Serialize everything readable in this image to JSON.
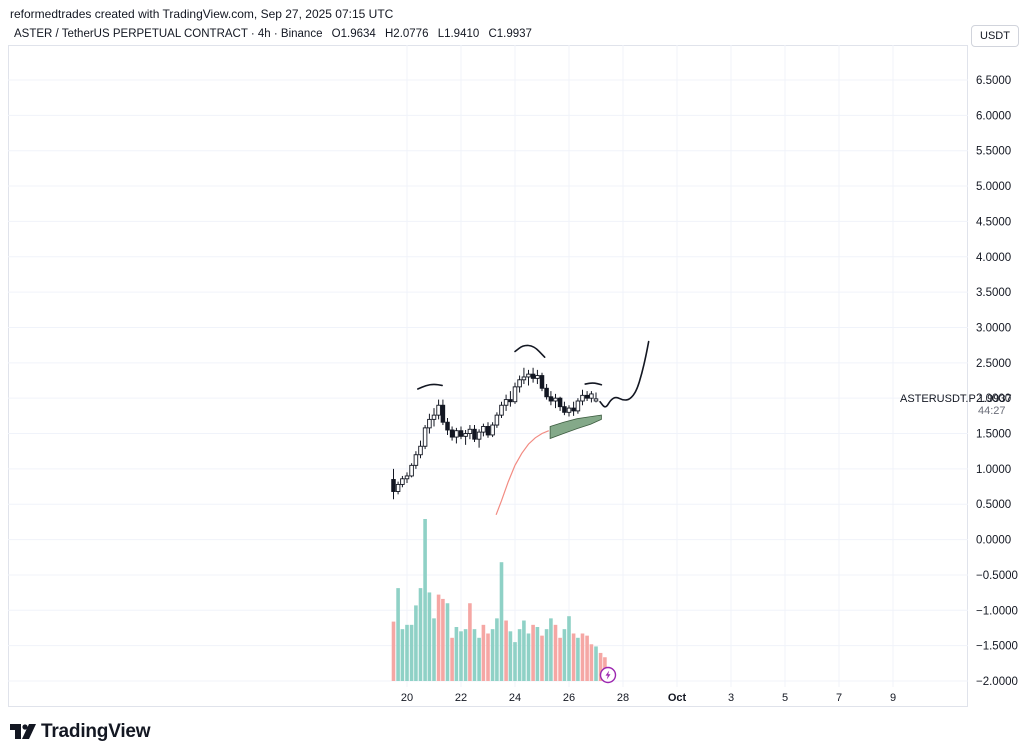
{
  "header": {
    "credit": "reformedtrades created with TradingView.com, Sep 27, 2025 07:15 UTC"
  },
  "legend": {
    "symbol": "ASTER / TetherUS PERPETUAL CONTRACT · 4h · Binance",
    "open": "O1.9634",
    "high": "H2.0776",
    "low": "L1.9410",
    "close": "C1.9937"
  },
  "currency": "USDT",
  "last_price": {
    "symbol": "ASTERUSDT.P",
    "value": "1.9937",
    "countdown": "44:27"
  },
  "brand": {
    "name": "TradingView",
    "icon": "tradingview-logo-icon"
  },
  "colors": {
    "up_volume": "#8fd1c6",
    "down_volume": "#f5a7a4",
    "candle": "#131722",
    "ma_line": "#f28b82",
    "shaded_zone": "#6f9a74",
    "grid": "#f0f3fa"
  },
  "chart_data": {
    "type": "candlestick",
    "title": "",
    "price_axis": {
      "ticks": [
        "6.5000",
        "6.0000",
        "5.5000",
        "5.0000",
        "4.5000",
        "4.0000",
        "3.5000",
        "3.0000",
        "2.5000",
        "2.0000",
        "1.5000",
        "1.0000",
        "0.5000",
        "0.0000",
        "−0.5000",
        "−1.0000",
        "−1.5000",
        "−2.0000"
      ],
      "ylim": [
        -2.0,
        6.5
      ]
    },
    "time_axis": {
      "ticks": [
        "20",
        "22",
        "24",
        "26",
        "28",
        "Oct",
        "3",
        "5",
        "7",
        "9"
      ],
      "tick_days": [
        20,
        22,
        24,
        26,
        28,
        30,
        32,
        34,
        36,
        38
      ],
      "xlim": [
        19.0,
        40.0
      ]
    },
    "grid": true,
    "candles": [
      {
        "x": 19.5,
        "o": 0.85,
        "h": 1.0,
        "l": 0.57,
        "c": 0.68
      },
      {
        "x": 19.67,
        "o": 0.68,
        "h": 0.82,
        "l": 0.64,
        "c": 0.78
      },
      {
        "x": 19.83,
        "o": 0.78,
        "h": 0.9,
        "l": 0.74,
        "c": 0.86
      },
      {
        "x": 20.0,
        "o": 0.86,
        "h": 0.95,
        "l": 0.8,
        "c": 0.9
      },
      {
        "x": 20.17,
        "o": 0.9,
        "h": 1.08,
        "l": 0.88,
        "c": 1.05
      },
      {
        "x": 20.33,
        "o": 1.05,
        "h": 1.25,
        "l": 1.0,
        "c": 1.2
      },
      {
        "x": 20.5,
        "o": 1.2,
        "h": 1.4,
        "l": 1.15,
        "c": 1.32
      },
      {
        "x": 20.67,
        "o": 1.32,
        "h": 1.62,
        "l": 1.28,
        "c": 1.58
      },
      {
        "x": 20.83,
        "o": 1.58,
        "h": 1.78,
        "l": 1.5,
        "c": 1.7
      },
      {
        "x": 21.0,
        "o": 1.7,
        "h": 1.86,
        "l": 1.6,
        "c": 1.76
      },
      {
        "x": 21.17,
        "o": 1.76,
        "h": 1.98,
        "l": 1.7,
        "c": 1.9
      },
      {
        "x": 21.33,
        "o": 1.9,
        "h": 1.98,
        "l": 1.62,
        "c": 1.66
      },
      {
        "x": 21.5,
        "o": 1.66,
        "h": 1.72,
        "l": 1.48,
        "c": 1.55
      },
      {
        "x": 21.67,
        "o": 1.55,
        "h": 1.6,
        "l": 1.4,
        "c": 1.45
      },
      {
        "x": 21.83,
        "o": 1.45,
        "h": 1.58,
        "l": 1.36,
        "c": 1.54
      },
      {
        "x": 22.0,
        "o": 1.54,
        "h": 1.6,
        "l": 1.42,
        "c": 1.46
      },
      {
        "x": 22.17,
        "o": 1.46,
        "h": 1.55,
        "l": 1.34,
        "c": 1.5
      },
      {
        "x": 22.33,
        "o": 1.5,
        "h": 1.62,
        "l": 1.42,
        "c": 1.56
      },
      {
        "x": 22.5,
        "o": 1.56,
        "h": 1.62,
        "l": 1.38,
        "c": 1.42
      },
      {
        "x": 22.67,
        "o": 1.42,
        "h": 1.56,
        "l": 1.3,
        "c": 1.52
      },
      {
        "x": 22.83,
        "o": 1.52,
        "h": 1.64,
        "l": 1.46,
        "c": 1.6
      },
      {
        "x": 23.0,
        "o": 1.6,
        "h": 1.66,
        "l": 1.44,
        "c": 1.48
      },
      {
        "x": 23.17,
        "o": 1.48,
        "h": 1.66,
        "l": 1.45,
        "c": 1.62
      },
      {
        "x": 23.33,
        "o": 1.62,
        "h": 1.8,
        "l": 1.58,
        "c": 1.76
      },
      {
        "x": 23.5,
        "o": 1.76,
        "h": 1.95,
        "l": 1.72,
        "c": 1.9
      },
      {
        "x": 23.67,
        "o": 1.9,
        "h": 2.05,
        "l": 1.82,
        "c": 1.98
      },
      {
        "x": 23.83,
        "o": 1.98,
        "h": 2.1,
        "l": 1.88,
        "c": 1.95
      },
      {
        "x": 24.0,
        "o": 1.95,
        "h": 2.22,
        "l": 1.92,
        "c": 2.16
      },
      {
        "x": 24.17,
        "o": 2.16,
        "h": 2.32,
        "l": 2.08,
        "c": 2.26
      },
      {
        "x": 24.33,
        "o": 2.26,
        "h": 2.43,
        "l": 2.2,
        "c": 2.3
      },
      {
        "x": 24.5,
        "o": 2.3,
        "h": 2.4,
        "l": 2.18,
        "c": 2.34
      },
      {
        "x": 24.67,
        "o": 2.34,
        "h": 2.43,
        "l": 2.22,
        "c": 2.28
      },
      {
        "x": 24.83,
        "o": 2.28,
        "h": 2.4,
        "l": 2.2,
        "c": 2.32
      },
      {
        "x": 25.0,
        "o": 2.32,
        "h": 2.36,
        "l": 2.1,
        "c": 2.14
      },
      {
        "x": 25.17,
        "o": 2.14,
        "h": 2.2,
        "l": 1.98,
        "c": 2.02
      },
      {
        "x": 25.33,
        "o": 2.02,
        "h": 2.1,
        "l": 1.9,
        "c": 1.96
      },
      {
        "x": 25.5,
        "o": 1.96,
        "h": 2.06,
        "l": 1.86,
        "c": 2.0
      },
      {
        "x": 25.67,
        "o": 2.0,
        "h": 2.02,
        "l": 1.82,
        "c": 1.88
      },
      {
        "x": 25.83,
        "o": 1.88,
        "h": 1.95,
        "l": 1.76,
        "c": 1.8
      },
      {
        "x": 26.0,
        "o": 1.8,
        "h": 1.9,
        "l": 1.74,
        "c": 1.86
      },
      {
        "x": 26.17,
        "o": 1.86,
        "h": 1.95,
        "l": 1.75,
        "c": 1.82
      },
      {
        "x": 26.33,
        "o": 1.82,
        "h": 2.0,
        "l": 1.78,
        "c": 1.96
      },
      {
        "x": 26.5,
        "o": 1.96,
        "h": 2.12,
        "l": 1.9,
        "c": 2.04
      },
      {
        "x": 26.67,
        "o": 2.04,
        "h": 2.1,
        "l": 1.96,
        "c": 2.0
      },
      {
        "x": 26.83,
        "o": 2.0,
        "h": 2.1,
        "l": 1.94,
        "c": 2.06
      },
      {
        "x": 27.0,
        "o": 1.96,
        "h": 2.08,
        "l": 1.94,
        "c": 1.99
      }
    ],
    "volume": [
      {
        "x": 19.5,
        "v": 0.55,
        "dir": "down"
      },
      {
        "x": 19.67,
        "v": 0.86,
        "dir": "up"
      },
      {
        "x": 19.83,
        "v": 0.48,
        "dir": "up"
      },
      {
        "x": 20.0,
        "v": 0.52,
        "dir": "up"
      },
      {
        "x": 20.17,
        "v": 0.52,
        "dir": "up"
      },
      {
        "x": 20.33,
        "v": 0.7,
        "dir": "up"
      },
      {
        "x": 20.5,
        "v": 0.86,
        "dir": "up"
      },
      {
        "x": 20.67,
        "v": 1.5,
        "dir": "up"
      },
      {
        "x": 20.83,
        "v": 0.82,
        "dir": "up"
      },
      {
        "x": 21.0,
        "v": 0.58,
        "dir": "up"
      },
      {
        "x": 21.17,
        "v": 0.8,
        "dir": "down"
      },
      {
        "x": 21.33,
        "v": 0.76,
        "dir": "down"
      },
      {
        "x": 21.5,
        "v": 0.72,
        "dir": "up"
      },
      {
        "x": 21.67,
        "v": 0.4,
        "dir": "down"
      },
      {
        "x": 21.83,
        "v": 0.5,
        "dir": "up"
      },
      {
        "x": 22.0,
        "v": 0.46,
        "dir": "up"
      },
      {
        "x": 22.17,
        "v": 0.48,
        "dir": "up"
      },
      {
        "x": 22.33,
        "v": 0.72,
        "dir": "down"
      },
      {
        "x": 22.5,
        "v": 0.48,
        "dir": "up"
      },
      {
        "x": 22.67,
        "v": 0.4,
        "dir": "up"
      },
      {
        "x": 22.83,
        "v": 0.52,
        "dir": "down"
      },
      {
        "x": 23.0,
        "v": 0.44,
        "dir": "down"
      },
      {
        "x": 23.17,
        "v": 0.48,
        "dir": "up"
      },
      {
        "x": 23.33,
        "v": 0.58,
        "dir": "up"
      },
      {
        "x": 23.5,
        "v": 1.1,
        "dir": "up"
      },
      {
        "x": 23.67,
        "v": 0.56,
        "dir": "down"
      },
      {
        "x": 23.83,
        "v": 0.46,
        "dir": "up"
      },
      {
        "x": 24.0,
        "v": 0.36,
        "dir": "up"
      },
      {
        "x": 24.17,
        "v": 0.48,
        "dir": "up"
      },
      {
        "x": 24.33,
        "v": 0.56,
        "dir": "up"
      },
      {
        "x": 24.5,
        "v": 0.44,
        "dir": "up"
      },
      {
        "x": 24.67,
        "v": 0.52,
        "dir": "down"
      },
      {
        "x": 24.83,
        "v": 0.5,
        "dir": "up"
      },
      {
        "x": 25.0,
        "v": 0.42,
        "dir": "down"
      },
      {
        "x": 25.17,
        "v": 0.48,
        "dir": "up"
      },
      {
        "x": 25.33,
        "v": 0.58,
        "dir": "up"
      },
      {
        "x": 25.5,
        "v": 0.52,
        "dir": "down"
      },
      {
        "x": 25.67,
        "v": 0.4,
        "dir": "down"
      },
      {
        "x": 25.83,
        "v": 0.48,
        "dir": "up"
      },
      {
        "x": 26.0,
        "v": 0.6,
        "dir": "up"
      },
      {
        "x": 26.17,
        "v": 0.44,
        "dir": "down"
      },
      {
        "x": 26.33,
        "v": 0.4,
        "dir": "up"
      },
      {
        "x": 26.5,
        "v": 0.44,
        "dir": "down"
      },
      {
        "x": 26.67,
        "v": 0.42,
        "dir": "down"
      },
      {
        "x": 26.83,
        "v": 0.34,
        "dir": "down"
      },
      {
        "x": 27.0,
        "v": 0.32,
        "dir": "up"
      },
      {
        "x": 27.17,
        "v": 0.26,
        "dir": "down"
      },
      {
        "x": 27.33,
        "v": 0.22,
        "dir": "down"
      }
    ],
    "volume_scale_max": 1.5,
    "moving_average": [
      {
        "x": 23.3,
        "y": 0.35
      },
      {
        "x": 23.5,
        "y": 0.55
      },
      {
        "x": 23.75,
        "y": 0.82
      },
      {
        "x": 24.0,
        "y": 1.05
      },
      {
        "x": 24.25,
        "y": 1.22
      },
      {
        "x": 24.5,
        "y": 1.35
      },
      {
        "x": 24.75,
        "y": 1.44
      },
      {
        "x": 25.0,
        "y": 1.5
      },
      {
        "x": 25.25,
        "y": 1.54
      }
    ],
    "shaded_zone": {
      "upper": [
        {
          "x": 25.3,
          "y": 1.6
        },
        {
          "x": 25.8,
          "y": 1.66
        },
        {
          "x": 26.3,
          "y": 1.71
        },
        {
          "x": 26.8,
          "y": 1.74
        },
        {
          "x": 27.2,
          "y": 1.76
        }
      ],
      "lower": [
        {
          "x": 27.2,
          "y": 1.7
        },
        {
          "x": 26.8,
          "y": 1.63
        },
        {
          "x": 26.3,
          "y": 1.57
        },
        {
          "x": 25.8,
          "y": 1.5
        },
        {
          "x": 25.3,
          "y": 1.43
        }
      ]
    },
    "annotations": {
      "left_shoulder": [
        {
          "x": 20.4,
          "y": 2.13
        },
        {
          "x": 20.7,
          "y": 2.18
        },
        {
          "x": 21.0,
          "y": 2.2
        },
        {
          "x": 21.3,
          "y": 2.18
        }
      ],
      "head": [
        {
          "x": 24.0,
          "y": 2.66
        },
        {
          "x": 24.3,
          "y": 2.75
        },
        {
          "x": 24.7,
          "y": 2.74
        },
        {
          "x": 25.1,
          "y": 2.58
        }
      ],
      "right_shoulder": [
        {
          "x": 26.6,
          "y": 2.2
        },
        {
          "x": 26.9,
          "y": 2.22
        },
        {
          "x": 27.2,
          "y": 2.19
        }
      ],
      "projection": [
        {
          "x": 27.15,
          "y": 1.95
        },
        {
          "x": 27.35,
          "y": 1.85
        },
        {
          "x": 27.55,
          "y": 1.98
        },
        {
          "x": 27.75,
          "y": 2.02
        },
        {
          "x": 28.0,
          "y": 1.97
        },
        {
          "x": 28.25,
          "y": 1.98
        },
        {
          "x": 28.5,
          "y": 2.1
        },
        {
          "x": 28.7,
          "y": 2.35
        },
        {
          "x": 28.85,
          "y": 2.6
        },
        {
          "x": 28.95,
          "y": 2.8
        }
      ]
    }
  }
}
